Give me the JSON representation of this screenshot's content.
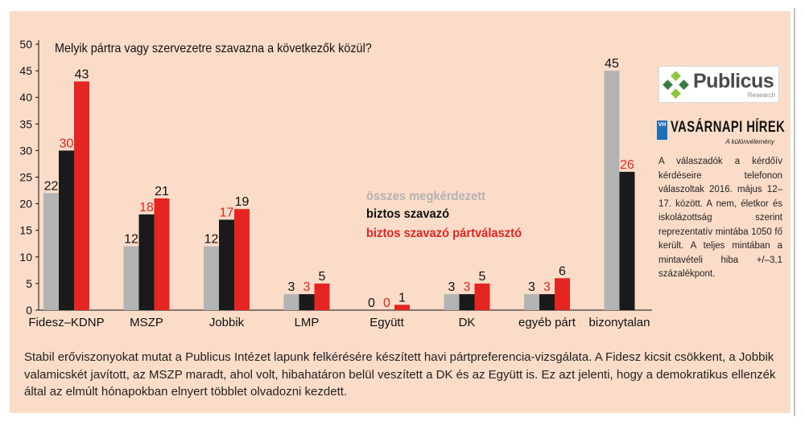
{
  "chart_data": {
    "type": "bar",
    "title": "Melyik pártra vagy szervezetre szavazna a következők közül?",
    "categories": [
      "Fidesz–KDNP",
      "MSZP",
      "Jobbik",
      "LMP",
      "Együtt",
      "DK",
      "egyéb párt",
      "bizonytalan"
    ],
    "series": [
      {
        "name": "összes megkérdezett",
        "color": "#b3b3b3",
        "values": [
          22,
          12,
          12,
          3,
          0,
          3,
          3,
          45
        ],
        "label_color": "#111111"
      },
      {
        "name": "biztos szavazó",
        "color": "#1a1a1a",
        "values": [
          30,
          18,
          17,
          3,
          0,
          3,
          3,
          26
        ],
        "label_color": "#e52521"
      },
      {
        "name": "biztos szavazó pártválasztó",
        "color": "#e52521",
        "values": [
          43,
          21,
          19,
          5,
          1,
          5,
          6,
          null
        ],
        "label_color": "#111111"
      }
    ],
    "ylim": [
      0,
      50
    ],
    "yticks": [
      0,
      5,
      10,
      15,
      20,
      25,
      30,
      35,
      40,
      45,
      50
    ],
    "grid": false
  },
  "logos": {
    "publicus_name": "Publicus",
    "publicus_sub": "Research",
    "vh_badge": "VH",
    "vh_name": "VASÁRNAPI HÍREK",
    "vh_sub": "A különvélemény"
  },
  "side_note": "A válaszadók a kérdőív kérdéseire telefonon válaszoltak 2016. május 12–17. között. A nem, életkor és iskolázottság szerint reprezentatív mintába 1050 fő került. A teljes mintában a mintavételi hiba +/–3,1 százalékpont.",
  "caption": "Stabil erőviszonyokat mutat a Publicus Intézet lapunk felkérésére készített havi pártpreferencia-vizsgálata. A Fidesz kicsit csökkent, a Jobbik valamicskét javított, az MSZP maradt, ahol volt, hibahatáron belül veszített a DK és az Együtt is. Ez azt jelenti, hogy a demokratikus ellenzék által az elmúlt hónapokban elnyert többlet olvadozni kezdett."
}
